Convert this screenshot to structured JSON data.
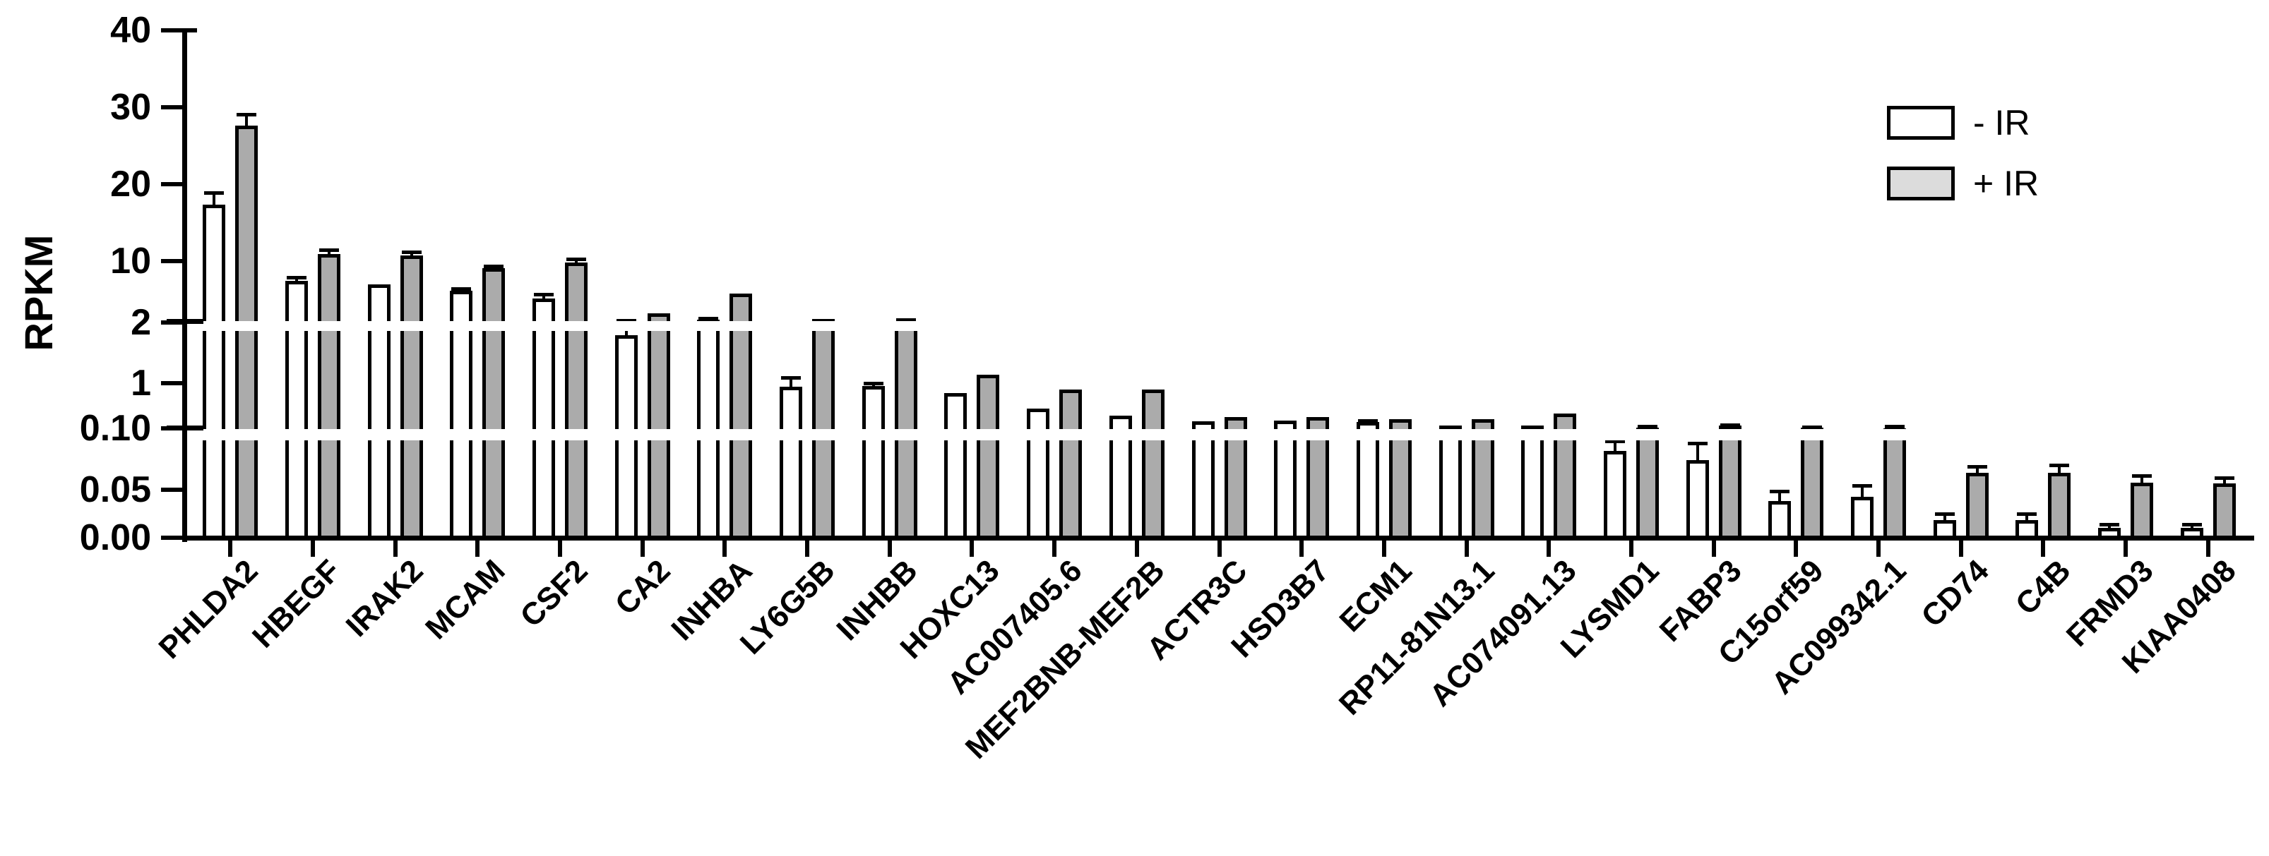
{
  "page": {
    "background": "#ffffff"
  },
  "chart_data": {
    "type": "bar",
    "title": "",
    "xlabel": "",
    "ylabel": "RPKM",
    "grid": false,
    "legend_position": "top-right",
    "ylim": [
      0,
      40
    ],
    "y_axis": {
      "scale": "segmented-linear",
      "segments": [
        {
          "from": 0.0,
          "to": 0.1
        },
        {
          "from": 0.1,
          "to": 2.0
        },
        {
          "from": 2.0,
          "to": 40.0
        }
      ],
      "breaks": [
        0.1,
        2.0
      ],
      "tick_values": [
        40,
        30,
        20,
        10,
        2,
        1,
        0.1,
        0.05,
        0.0
      ],
      "tick_labels": [
        "40",
        "30",
        "20",
        "10",
        "2",
        "1",
        "0.10",
        "0.05",
        "0.00"
      ]
    },
    "categories": [
      "PHLDA2",
      "HBEGF",
      "IRAK2",
      "MCAM",
      "CSF2",
      "CA2",
      "INHBA",
      "LY6G5B",
      "INHBB",
      "HOXC13",
      "AC007405.6",
      "MEF2BNB-MEF2B",
      "ACTR3C",
      "HSD3B7",
      "ECM1",
      "RP11-81N13.1",
      "AC074091.13",
      "LYSMD1",
      "FABP3",
      "C15orf59",
      "AC099342.1",
      "CD74",
      "C4B",
      "FRMD3",
      "KIAA0408"
    ],
    "series": [
      {
        "name": "- IR",
        "fill": "#ffffff",
        "stroke": "#000000",
        "values": [
          17.3,
          7.4,
          7.0,
          6.1,
          5.1,
          1.96,
          2.35,
          0.93,
          0.94,
          0.8,
          0.5,
          0.35,
          0.24,
          0.26,
          0.22,
          0.16,
          0.15,
          0.09,
          0.08,
          0.038,
          0.042,
          0.018,
          0.018,
          0.01,
          0.01
        ],
        "errors": [
          1.6,
          0.5,
          0,
          0.3,
          0.6,
          0.35,
          0.2,
          0.18,
          0.06,
          0,
          0,
          0,
          0,
          0,
          0.03,
          0,
          0,
          0.01,
          0.018,
          0.01,
          0.012,
          0.007,
          0.007,
          0.004,
          0.004
        ]
      },
      {
        "name": "+ IR",
        "fill": "#ababab",
        "stroke": "#000000",
        "values": [
          27.6,
          10.9,
          10.7,
          9.1,
          9.8,
          3.2,
          5.8,
          2.5,
          2.1,
          1.17,
          0.87,
          0.88,
          0.32,
          0.33,
          0.29,
          0.28,
          0.4,
          0.115,
          0.16,
          0.115,
          0.1,
          0.067,
          0.067,
          0.057,
          0.056
        ],
        "errors": [
          1.5,
          0.6,
          0.5,
          0.25,
          0.5,
          0,
          0,
          0,
          0.3,
          0,
          0,
          0,
          0,
          0,
          0,
          0,
          0,
          0.025,
          0.015,
          0.02,
          0.04,
          0.007,
          0.008,
          0.007,
          0.006
        ]
      }
    ],
    "legend": [
      {
        "label": "- IR",
        "swatch_fill": "#ffffff"
      },
      {
        "label": "+ IR",
        "swatch_fill": "#dcdcdc"
      }
    ]
  }
}
